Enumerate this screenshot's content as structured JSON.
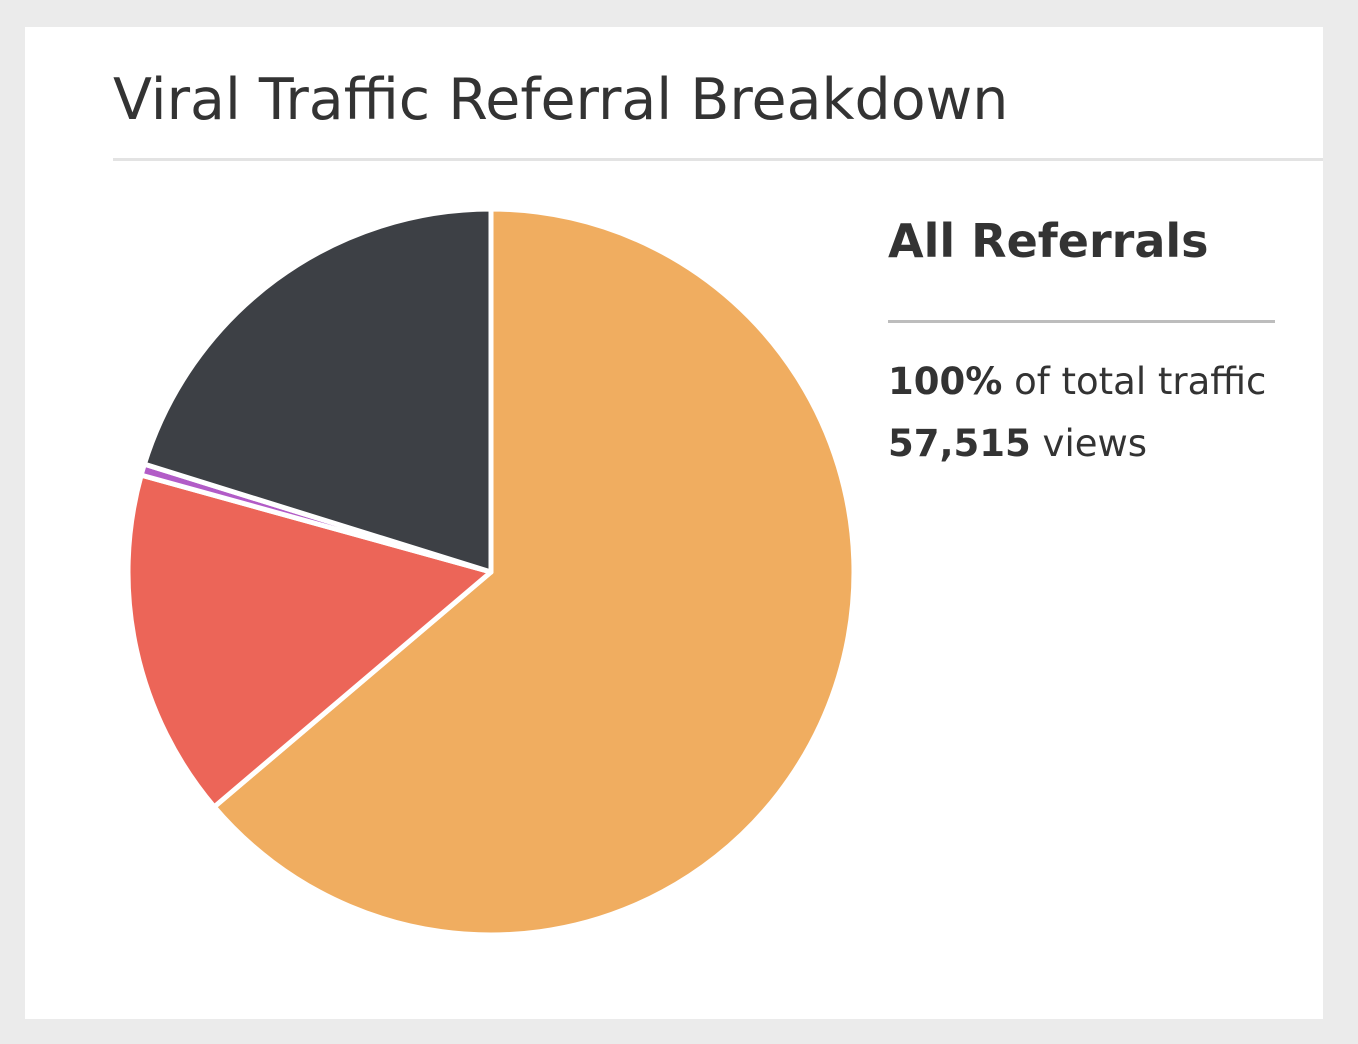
{
  "colors": {
    "background": "#ebebeb",
    "card": "#ffffff",
    "text": "#333333"
  },
  "card": {
    "title": "Viral Traffic Referral Breakdown"
  },
  "summary": {
    "heading": "All Referrals",
    "share_value": "100%",
    "share_text": "of total traffic",
    "views_value": "57,515",
    "views_text": "views"
  },
  "chart_data": {
    "type": "pie",
    "title": "",
    "start_angle_deg": 0,
    "direction": "clockwise",
    "slices": [
      {
        "value": 63.8,
        "color": "#f0ad60"
      },
      {
        "value": 15.5,
        "color": "#ec6558"
      },
      {
        "value": 0.5,
        "color": "#b25cc7"
      },
      {
        "value": 20.2,
        "color": "#3d4045"
      }
    ]
  }
}
